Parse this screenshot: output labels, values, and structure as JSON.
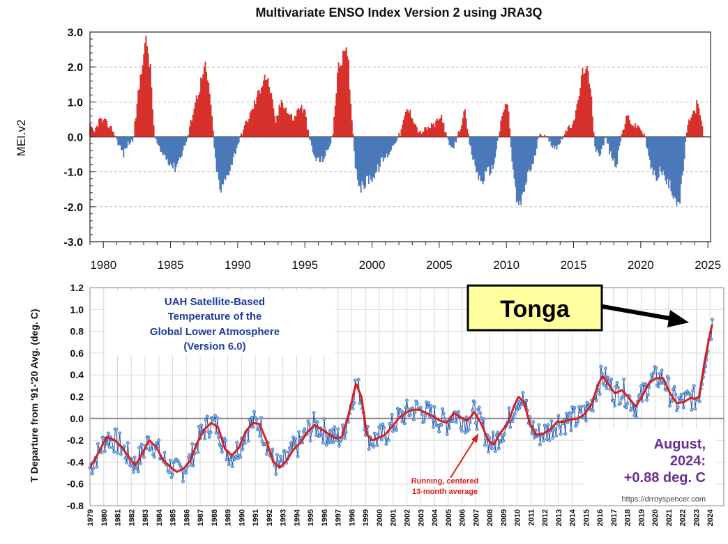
{
  "colors": {
    "mei_positive": "#d7302a",
    "mei_negative": "#4a78b8",
    "uah_monthly": "#1f4fa8",
    "uah_marker": "#7fb8e6",
    "uah_running": "#d81f1f",
    "text_blue": "#1f3c9c",
    "text_purple": "#6a2d91",
    "tonga_fill": "#ffffa0"
  },
  "chart_data": [
    {
      "type": "bar",
      "title": "Multivariate ENSO Index Version 2 using JRA3Q",
      "ylabel": "MEI.v2",
      "xlabel": "",
      "xlim": [
        1979,
        2025.2
      ],
      "ylim": [
        -3.0,
        3.0
      ],
      "y_ticks": [
        "3.0",
        "2.0",
        "1.0",
        "0.0",
        "-1.0",
        "-2.0",
        "-3.0"
      ],
      "x_ticks": [
        "1980",
        "1985",
        "1990",
        "1995",
        "2000",
        "2005",
        "2010",
        "2015",
        "2020",
        "2025"
      ],
      "resolution": "monthly",
      "series": [
        {
          "name": "MEI.v2",
          "keyframes": [
            [
              1979.0,
              0.3
            ],
            [
              1979.3,
              0.1
            ],
            [
              1979.7,
              0.5
            ],
            [
              1980.2,
              0.4
            ],
            [
              1980.7,
              0.2
            ],
            [
              1981.0,
              -0.1
            ],
            [
              1981.5,
              -0.5
            ],
            [
              1981.8,
              -0.2
            ],
            [
              1982.2,
              -0.1
            ],
            [
              1982.5,
              0.9
            ],
            [
              1982.9,
              2.2
            ],
            [
              1983.2,
              2.8
            ],
            [
              1983.5,
              1.9
            ],
            [
              1983.8,
              0.0
            ],
            [
              1984.2,
              -0.4
            ],
            [
              1984.7,
              -0.6
            ],
            [
              1985.3,
              -0.9
            ],
            [
              1985.8,
              -0.5
            ],
            [
              1986.3,
              0.0
            ],
            [
              1986.7,
              0.8
            ],
            [
              1987.2,
              1.5
            ],
            [
              1987.6,
              2.0
            ],
            [
              1988.0,
              1.0
            ],
            [
              1988.3,
              -0.6
            ],
            [
              1988.7,
              -1.6
            ],
            [
              1989.1,
              -1.2
            ],
            [
              1989.6,
              -0.7
            ],
            [
              1990.0,
              -0.2
            ],
            [
              1990.5,
              0.3
            ],
            [
              1991.0,
              0.7
            ],
            [
              1991.5,
              1.2
            ],
            [
              1992.0,
              1.8
            ],
            [
              1992.4,
              1.4
            ],
            [
              1992.8,
              0.4
            ],
            [
              1993.3,
              1.1
            ],
            [
              1993.7,
              0.7
            ],
            [
              1994.2,
              0.5
            ],
            [
              1994.6,
              0.9
            ],
            [
              1995.0,
              0.7
            ],
            [
              1995.3,
              0.0
            ],
            [
              1995.7,
              -0.6
            ],
            [
              1996.2,
              -0.7
            ],
            [
              1996.7,
              -0.4
            ],
            [
              1997.1,
              0.1
            ],
            [
              1997.4,
              1.8
            ],
            [
              1997.8,
              2.3
            ],
            [
              1998.2,
              2.4
            ],
            [
              1998.5,
              0.5
            ],
            [
              1998.8,
              -1.0
            ],
            [
              1999.2,
              -1.5
            ],
            [
              1999.7,
              -1.2
            ],
            [
              2000.2,
              -1.1
            ],
            [
              2000.7,
              -0.7
            ],
            [
              2001.2,
              -0.5
            ],
            [
              2001.6,
              -0.2
            ],
            [
              2002.1,
              0.1
            ],
            [
              2002.6,
              0.8
            ],
            [
              2003.0,
              0.6
            ],
            [
              2003.5,
              0.1
            ],
            [
              2003.9,
              0.2
            ],
            [
              2004.4,
              0.3
            ],
            [
              2004.8,
              0.4
            ],
            [
              2005.2,
              0.6
            ],
            [
              2005.6,
              -0.1
            ],
            [
              2006.0,
              -0.4
            ],
            [
              2006.5,
              0.2
            ],
            [
              2006.9,
              0.7
            ],
            [
              2007.3,
              -0.3
            ],
            [
              2007.7,
              -0.9
            ],
            [
              2008.1,
              -1.3
            ],
            [
              2008.6,
              -1.0
            ],
            [
              2009.0,
              -0.9
            ],
            [
              2009.4,
              0.0
            ],
            [
              2009.8,
              0.8
            ],
            [
              2010.1,
              1.0
            ],
            [
              2010.4,
              -0.6
            ],
            [
              2010.8,
              -2.0
            ],
            [
              2011.2,
              -1.8
            ],
            [
              2011.6,
              -1.0
            ],
            [
              2012.0,
              -0.8
            ],
            [
              2012.4,
              0.0
            ],
            [
              2012.8,
              0.1
            ],
            [
              2013.3,
              -0.2
            ],
            [
              2013.8,
              -0.3
            ],
            [
              2014.3,
              0.1
            ],
            [
              2014.8,
              0.3
            ],
            [
              2015.2,
              0.7
            ],
            [
              2015.6,
              1.7
            ],
            [
              2015.9,
              2.1
            ],
            [
              2016.3,
              1.2
            ],
            [
              2016.6,
              -0.3
            ],
            [
              2017.0,
              -0.5
            ],
            [
              2017.4,
              0.0
            ],
            [
              2017.8,
              -0.6
            ],
            [
              2018.2,
              -0.8
            ],
            [
              2018.6,
              0.1
            ],
            [
              2019.0,
              0.6
            ],
            [
              2019.5,
              0.3
            ],
            [
              2019.9,
              0.3
            ],
            [
              2020.3,
              0.0
            ],
            [
              2020.7,
              -0.8
            ],
            [
              2021.1,
              -1.2
            ],
            [
              2021.5,
              -0.9
            ],
            [
              2021.9,
              -1.3
            ],
            [
              2022.3,
              -1.5
            ],
            [
              2022.7,
              -1.8
            ],
            [
              2022.9,
              -1.9
            ],
            [
              2023.2,
              -0.8
            ],
            [
              2023.4,
              0.1
            ],
            [
              2023.7,
              0.6
            ],
            [
              2024.0,
              0.7
            ],
            [
              2024.2,
              1.0
            ],
            [
              2024.4,
              0.6
            ],
            [
              2024.6,
              0.3
            ]
          ]
        }
      ]
    },
    {
      "type": "line",
      "title": "UAH Satellite-Based Temperature of the Global Lower Atmosphere (Version 6.0)",
      "title_lines": [
        "UAH Satellite-Based",
        "Temperature of the",
        "Global Lower Atmosphere",
        "(Version 6.0)"
      ],
      "ylabel": "T Departure from '91-'20 Avg. (deg. C)",
      "xlabel": "",
      "xlim": [
        1979,
        2025
      ],
      "ylim": [
        -0.8,
        1.2
      ],
      "y_ticks": [
        "1.2",
        "1.0",
        "0.8",
        "0.6",
        "0.4",
        "0.2",
        "0.0",
        "-0.2",
        "-0.4",
        "-0.6",
        "-0.8"
      ],
      "x_ticks": [
        "1979",
        "1980",
        "1981",
        "1982",
        "1983",
        "1984",
        "1985",
        "1986",
        "1987",
        "1988",
        "1989",
        "1990",
        "1991",
        "1992",
        "1993",
        "1994",
        "1995",
        "1996",
        "1997",
        "1998",
        "1999",
        "2000",
        "2001",
        "2002",
        "2003",
        "2004",
        "2005",
        "2006",
        "2007",
        "2008",
        "2009",
        "2010",
        "2011",
        "2012",
        "2013",
        "2014",
        "2015",
        "2016",
        "2017",
        "2018",
        "2019",
        "2020",
        "2021",
        "2022",
        "2023",
        "2024"
      ],
      "series": [
        {
          "name": "Running, centered 13-month average",
          "keyframes": [
            [
              1979.0,
              -0.45
            ],
            [
              1979.6,
              -0.32
            ],
            [
              1980.2,
              -0.17
            ],
            [
              1980.8,
              -0.2
            ],
            [
              1981.3,
              -0.26
            ],
            [
              1981.8,
              -0.35
            ],
            [
              1982.3,
              -0.43
            ],
            [
              1982.8,
              -0.32
            ],
            [
              1983.3,
              -0.2
            ],
            [
              1983.8,
              -0.26
            ],
            [
              1984.3,
              -0.38
            ],
            [
              1984.8,
              -0.44
            ],
            [
              1985.3,
              -0.49
            ],
            [
              1985.8,
              -0.46
            ],
            [
              1986.3,
              -0.38
            ],
            [
              1986.8,
              -0.22
            ],
            [
              1987.3,
              -0.1
            ],
            [
              1987.8,
              -0.04
            ],
            [
              1988.3,
              -0.08
            ],
            [
              1988.8,
              -0.28
            ],
            [
              1989.3,
              -0.34
            ],
            [
              1989.8,
              -0.27
            ],
            [
              1990.3,
              -0.12
            ],
            [
              1990.8,
              -0.04
            ],
            [
              1991.3,
              -0.05
            ],
            [
              1991.8,
              -0.2
            ],
            [
              1992.3,
              -0.4
            ],
            [
              1992.8,
              -0.45
            ],
            [
              1993.3,
              -0.38
            ],
            [
              1993.8,
              -0.28
            ],
            [
              1994.3,
              -0.22
            ],
            [
              1994.8,
              -0.12
            ],
            [
              1995.3,
              -0.06
            ],
            [
              1995.8,
              -0.1
            ],
            [
              1996.3,
              -0.14
            ],
            [
              1996.8,
              -0.18
            ],
            [
              1997.3,
              -0.17
            ],
            [
              1997.8,
              0.05
            ],
            [
              1998.3,
              0.32
            ],
            [
              1998.7,
              0.2
            ],
            [
              1999.1,
              -0.15
            ],
            [
              1999.5,
              -0.2
            ],
            [
              1999.9,
              -0.18
            ],
            [
              2000.4,
              -0.15
            ],
            [
              2000.9,
              -0.08
            ],
            [
              2001.4,
              0.0
            ],
            [
              2001.9,
              0.05
            ],
            [
              2002.4,
              0.08
            ],
            [
              2002.9,
              0.08
            ],
            [
              2003.4,
              0.05
            ],
            [
              2003.9,
              0.02
            ],
            [
              2004.4,
              -0.02
            ],
            [
              2004.9,
              -0.04
            ],
            [
              2005.4,
              0.05
            ],
            [
              2005.9,
              0.01
            ],
            [
              2006.4,
              -0.02
            ],
            [
              2006.9,
              0.06
            ],
            [
              2007.4,
              -0.05
            ],
            [
              2007.9,
              -0.2
            ],
            [
              2008.3,
              -0.24
            ],
            [
              2008.8,
              -0.13
            ],
            [
              2009.3,
              -0.05
            ],
            [
              2009.8,
              0.12
            ],
            [
              2010.1,
              0.2
            ],
            [
              2010.5,
              0.15
            ],
            [
              2010.9,
              -0.04
            ],
            [
              2011.4,
              -0.15
            ],
            [
              2011.9,
              -0.14
            ],
            [
              2012.4,
              -0.1
            ],
            [
              2012.9,
              -0.03
            ],
            [
              2013.4,
              -0.03
            ],
            [
              2013.9,
              -0.01
            ],
            [
              2014.4,
              0.0
            ],
            [
              2014.9,
              0.04
            ],
            [
              2015.4,
              0.13
            ],
            [
              2015.9,
              0.32
            ],
            [
              2016.2,
              0.39
            ],
            [
              2016.6,
              0.32
            ],
            [
              2017.1,
              0.23
            ],
            [
              2017.6,
              0.26
            ],
            [
              2018.1,
              0.19
            ],
            [
              2018.6,
              0.11
            ],
            [
              2019.1,
              0.21
            ],
            [
              2019.6,
              0.33
            ],
            [
              2020.1,
              0.37
            ],
            [
              2020.6,
              0.37
            ],
            [
              2021.1,
              0.23
            ],
            [
              2021.6,
              0.14
            ],
            [
              2022.1,
              0.15
            ],
            [
              2022.6,
              0.19
            ],
            [
              2022.9,
              0.18
            ],
            [
              2023.2,
              0.2
            ],
            [
              2023.6,
              0.52
            ],
            [
              2024.0,
              0.78
            ],
            [
              2024.2,
              0.88
            ]
          ]
        }
      ],
      "annotations": {
        "running_label_lines": [
          "Running, centered",
          "13-month average"
        ],
        "latest_lines": [
          "August,",
          "2024:",
          "+0.88 deg. C"
        ],
        "source": "https://drroyspencer.com",
        "callout": "Tonga"
      }
    }
  ]
}
